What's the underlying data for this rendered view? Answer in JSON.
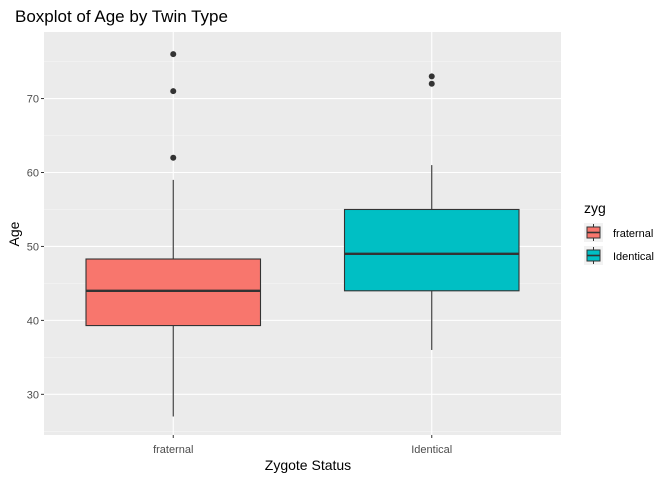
{
  "chart_data": {
    "type": "boxplot",
    "title": "Boxplot of Age by Twin Type",
    "xlabel": "Zygote Status",
    "ylabel": "Age",
    "ylim": [
      24.5,
      79
    ],
    "yticks": [
      30,
      40,
      50,
      60,
      70
    ],
    "grid": true,
    "legend": {
      "title": "zyg",
      "position": "right",
      "entries": [
        "fraternal",
        "Identical"
      ]
    },
    "categories": [
      "fraternal",
      "Identical"
    ],
    "series": [
      {
        "name": "fraternal",
        "color": "#F8766D",
        "whisker_low": 27,
        "q1": 39.3,
        "median": 44,
        "q3": 48.3,
        "whisker_high": 59,
        "outliers": [
          62,
          71,
          76
        ]
      },
      {
        "name": "Identical",
        "color": "#00BFC4",
        "whisker_low": 36,
        "q1": 44,
        "median": 49,
        "q3": 55,
        "whisker_high": 61,
        "outliers": [
          72,
          73
        ]
      }
    ]
  }
}
